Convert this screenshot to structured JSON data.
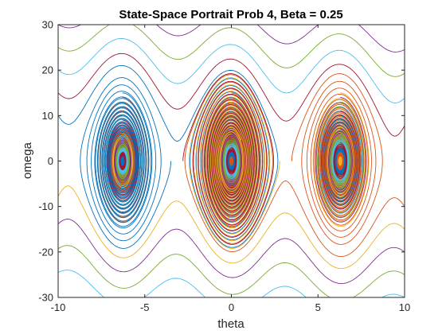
{
  "chart_data": {
    "type": "line",
    "title": "State-Space Portrait Prob 4, Beta = 0.25",
    "xlabel": "theta",
    "ylabel": "omega",
    "xlim": [
      -10,
      10
    ],
    "ylim": [
      -30,
      30
    ],
    "grid": false,
    "x_ticks": [
      -10,
      -5,
      0,
      5,
      10
    ],
    "x_tick_labels": [
      "-10",
      "-5",
      "0",
      "5",
      "10"
    ],
    "y_ticks": [
      -30,
      -20,
      -10,
      0,
      10,
      20,
      30
    ],
    "y_tick_labels": [
      "-30",
      "-20",
      "-10",
      "0",
      "10",
      "20",
      "30"
    ],
    "beta": 0.25,
    "spiral_centers": [
      -6.2832,
      0,
      6.2832
    ],
    "saddle_points": [
      -3.1416,
      3.1416
    ],
    "spiral_start_amplitudes": [
      15,
      14,
      13,
      12,
      11,
      10,
      9,
      8,
      7,
      6,
      5,
      4,
      3,
      2,
      1
    ],
    "running_start_omegas": [
      30,
      25,
      20,
      15,
      10,
      -10,
      -15,
      -20,
      -25,
      -30
    ],
    "series_colors": [
      "#0072bd",
      "#d95319",
      "#edb120",
      "#7e2f8e",
      "#77ac30",
      "#4dbeee",
      "#a2142f"
    ]
  }
}
